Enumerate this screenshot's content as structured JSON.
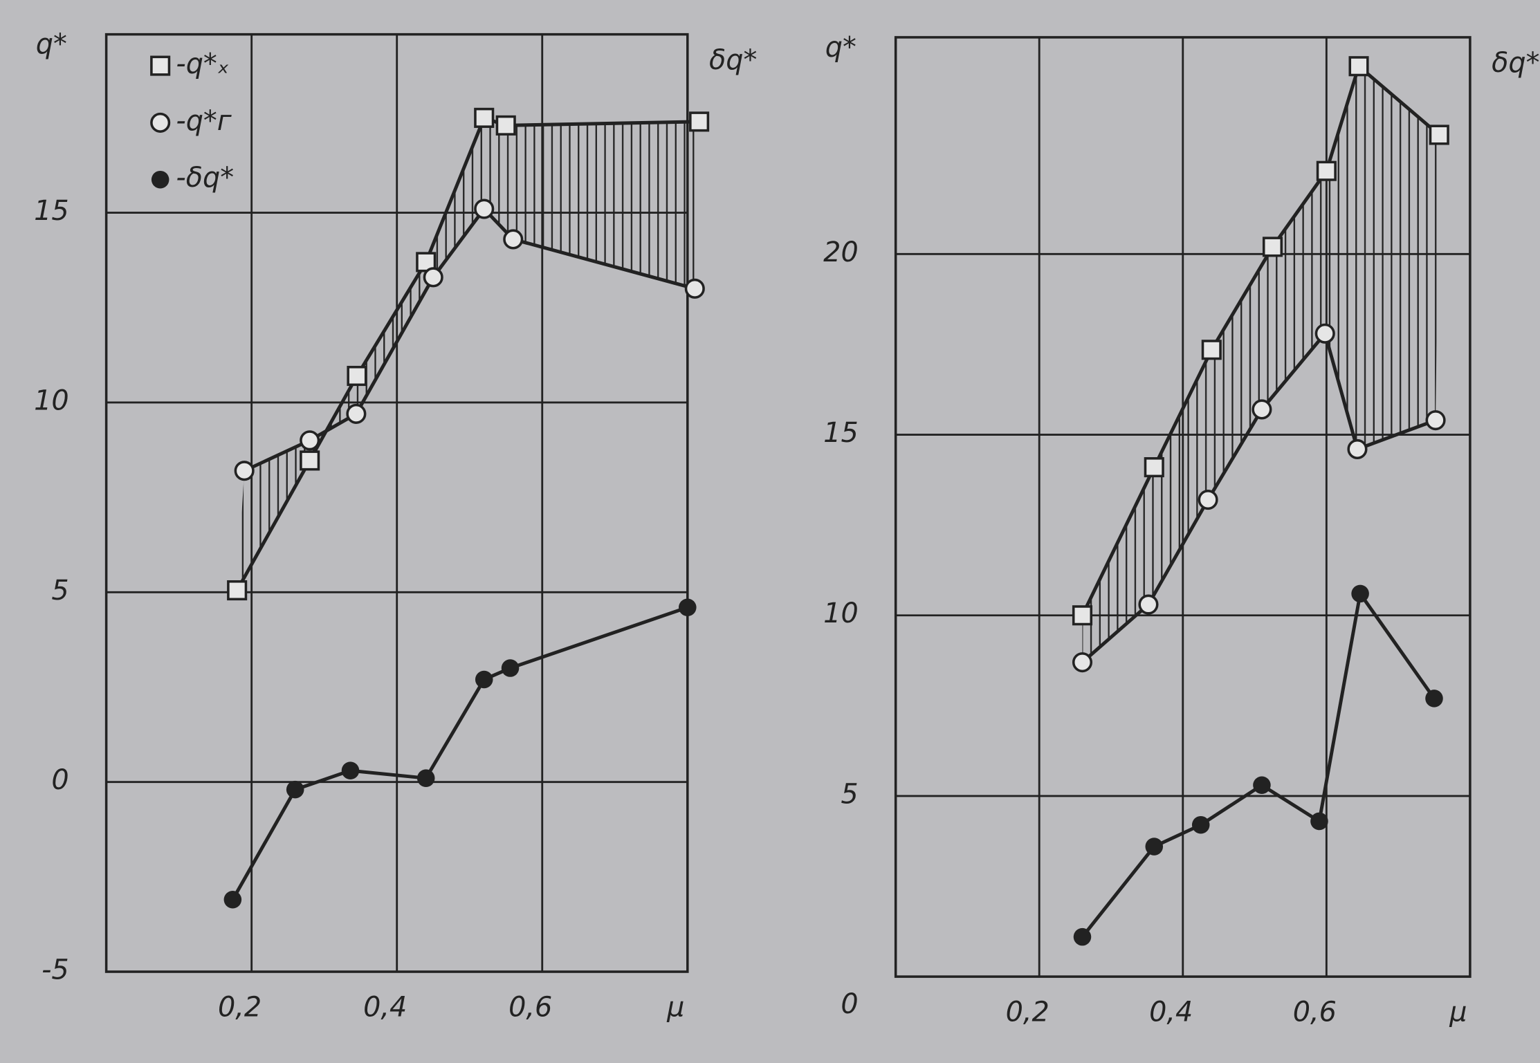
{
  "charts": [
    {
      "type": "line",
      "ylabel": "q*",
      "y2label": "δq*",
      "xlabel": "μ",
      "xlim": [
        0,
        0.8
      ],
      "ylim": [
        -5,
        19.7
      ],
      "xticks": [
        {
          "value": 0.2,
          "label": "0,2"
        },
        {
          "value": 0.4,
          "label": "0,4"
        },
        {
          "value": 0.6,
          "label": "0,6"
        }
      ],
      "yticks": [
        -5,
        0,
        5,
        10,
        15
      ],
      "grid": true,
      "legend": "upper left",
      "hatch_between": [
        0,
        1
      ],
      "series": [
        {
          "name": "-q*ₓ",
          "marker": "square",
          "x": [
            0.18,
            0.28,
            0.345,
            0.44,
            0.52,
            0.55,
            0.816
          ],
          "values": [
            5.05,
            8.47,
            10.7,
            13.7,
            17.5,
            17.3,
            17.4
          ]
        },
        {
          "name": "-q*г",
          "marker": "circle",
          "x": [
            0.19,
            0.28,
            0.344,
            0.45,
            0.52,
            0.56,
            0.81
          ],
          "values": [
            8.2,
            9.0,
            9.7,
            13.3,
            15.1,
            14.3,
            13.0
          ]
        },
        {
          "name": "-δq*",
          "marker": "dot",
          "x": [
            0.174,
            0.26,
            0.336,
            0.44,
            0.52,
            0.556,
            0.8
          ],
          "values": [
            -3.1,
            -0.2,
            0.3,
            0.1,
            2.7,
            3.0,
            4.6
          ]
        }
      ]
    },
    {
      "type": "line",
      "ylabel": "q*",
      "y2label": "δq*",
      "xlabel": "μ",
      "xlim": [
        0,
        0.8
      ],
      "ylim": [
        0,
        26
      ],
      "xticks": [
        {
          "value": 0.2,
          "label": "0,2"
        },
        {
          "value": 0.4,
          "label": "0,4"
        },
        {
          "value": 0.6,
          "label": "0,6"
        }
      ],
      "yticks": [
        0,
        5,
        10,
        15,
        20
      ],
      "grid": true,
      "hatch_between": [
        0,
        1
      ],
      "series": [
        {
          "marker": "square",
          "x": [
            0.26,
            0.36,
            0.44,
            0.525,
            0.6,
            0.645,
            0.757
          ],
          "values": [
            10.0,
            14.1,
            17.35,
            20.2,
            22.3,
            25.2,
            23.3
          ]
        },
        {
          "marker": "circle",
          "x": [
            0.26,
            0.352,
            0.435,
            0.51,
            0.598,
            0.643,
            0.752
          ],
          "values": [
            8.7,
            10.3,
            13.2,
            15.7,
            17.8,
            14.6,
            15.4
          ]
        },
        {
          "marker": "dot",
          "x": [
            0.26,
            0.36,
            0.425,
            0.51,
            0.59,
            0.647,
            0.75
          ],
          "values": [
            1.1,
            3.6,
            4.2,
            5.3,
            4.3,
            10.6,
            7.7
          ]
        }
      ]
    }
  ]
}
